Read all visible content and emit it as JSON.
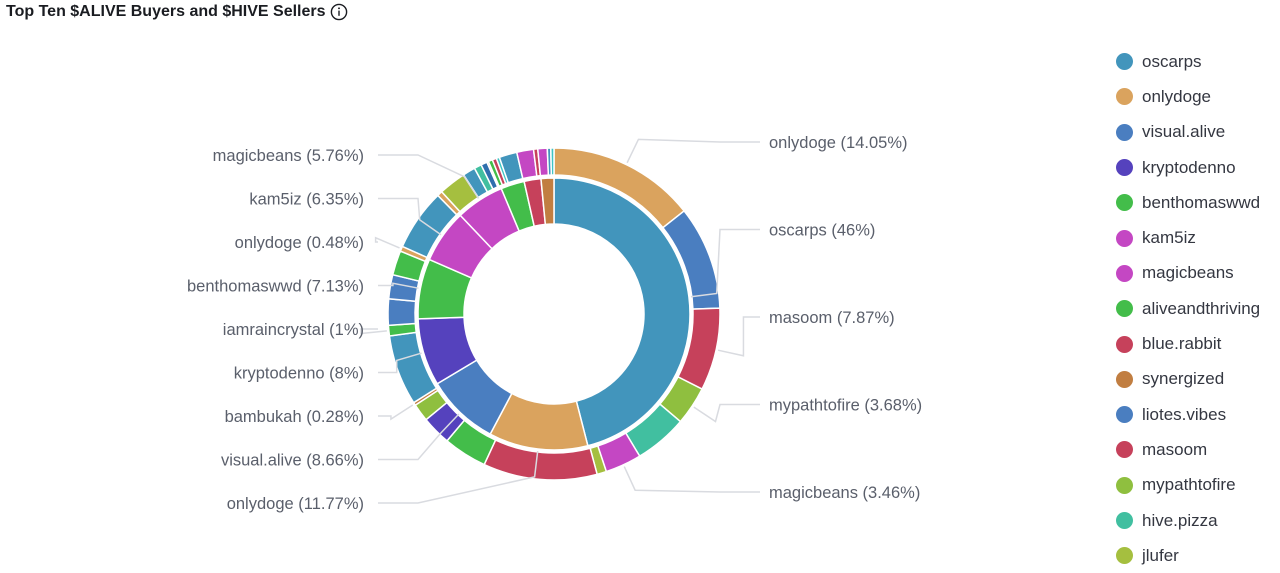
{
  "title": "Top Ten $ALIVE Buyers and $HIVE Sellers",
  "info_icon": "info-circle-icon",
  "colors": {
    "oscarps": "#4295bc",
    "onlydoge": "#daa35e",
    "visual.alive": "#4a7ec0",
    "kryptodenno": "#5542bd",
    "benthomaswwd": "#43bd4a",
    "kam5iz": "#c447c3",
    "magicbeans": "#c447c3",
    "aliveandthriving": "#43bd4a",
    "blue.rabbit": "#c6415b",
    "synergized": "#c17e41",
    "liotes.vibes": "#4a7ec0",
    "masoom": "#c6415b",
    "mypathtofire": "#8fbf3f",
    "hive.pizza": "#41bfa0",
    "jlufer": "#a5bf3f",
    "bambukah": "#c17e41",
    "iamraincrystal": "#43bd4a",
    "other_dark": "#2f6fad",
    "other_teal": "#3ec4c4"
  },
  "legend": [
    {
      "label": "oscarps",
      "color": "#4295bc"
    },
    {
      "label": "onlydoge",
      "color": "#daa35e"
    },
    {
      "label": "visual.alive",
      "color": "#4a7ec0"
    },
    {
      "label": "kryptodenno",
      "color": "#5542bd"
    },
    {
      "label": "benthomaswwd",
      "color": "#43bd4a"
    },
    {
      "label": "kam5iz",
      "color": "#c447c3"
    },
    {
      "label": "magicbeans",
      "color": "#c447c3"
    },
    {
      "label": "aliveandthriving",
      "color": "#43bd4a"
    },
    {
      "label": "blue.rabbit",
      "color": "#c6415b"
    },
    {
      "label": "synergized",
      "color": "#c17e41"
    },
    {
      "label": "liotes.vibes",
      "color": "#4a7ec0"
    },
    {
      "label": "masoom",
      "color": "#c6415b"
    },
    {
      "label": "mypathtofire",
      "color": "#8fbf3f"
    },
    {
      "label": "hive.pizza",
      "color": "#41bfa0"
    },
    {
      "label": "jlufer",
      "color": "#a5bf3f"
    }
  ],
  "chart_data": {
    "type": "pie",
    "donut": true,
    "legend_position": "right",
    "inner_ring": [
      {
        "name": "oscarps",
        "value": 46,
        "color": "#4295bc"
      },
      {
        "name": "onlydoge",
        "value": 11.77,
        "color": "#daa35e"
      },
      {
        "name": "visual.alive",
        "value": 8.66,
        "color": "#4a7ec0"
      },
      {
        "name": "kryptodenno",
        "value": 8,
        "color": "#5542bd"
      },
      {
        "name": "benthomaswwd",
        "value": 7.13,
        "color": "#43bd4a"
      },
      {
        "name": "kam5iz",
        "value": 6.35,
        "color": "#c447c3"
      },
      {
        "name": "magicbeans",
        "value": 5.76,
        "color": "#c447c3"
      },
      {
        "name": "aliveandthriving",
        "value": 2.8,
        "color": "#43bd4a"
      },
      {
        "name": "blue.rabbit",
        "value": 2.0,
        "color": "#c6415b"
      },
      {
        "name": "synergized",
        "value": 1.53,
        "color": "#c17e41"
      }
    ],
    "outer_ring": [
      {
        "parent": "oscarps",
        "name": "onlydoge",
        "value": 14.05,
        "color": "#daa35e"
      },
      {
        "parent": "oscarps",
        "name": "visual.alive",
        "value": 9.9,
        "color": "#4a7ec0"
      },
      {
        "parent": "oscarps",
        "name": "masoom",
        "value": 7.87,
        "color": "#c6415b"
      },
      {
        "parent": "oscarps",
        "name": "mypathtofire",
        "value": 3.68,
        "color": "#8fbf3f"
      },
      {
        "parent": "oscarps",
        "name": "hive.pizza",
        "value": 5.04,
        "color": "#41bfa0"
      },
      {
        "parent": "oscarps",
        "name": "magicbeans",
        "value": 3.46,
        "color": "#c447c3"
      },
      {
        "parent": "onlydoge",
        "name": "jlufer",
        "value": 0.9,
        "color": "#a5bf3f"
      },
      {
        "parent": "onlydoge",
        "name": "masoom",
        "value": 10.87,
        "color": "#c6415b"
      },
      {
        "parent": "visual.alive",
        "name": "benthomaswwd",
        "value": 4.16,
        "color": "#43bd4a"
      },
      {
        "parent": "visual.alive",
        "name": "kryptodenno",
        "value": 2.8,
        "color": "#5542bd"
      },
      {
        "parent": "visual.alive",
        "name": "mypathtofire",
        "value": 1.7,
        "color": "#8fbf3f"
      },
      {
        "parent": "kryptodenno",
        "name": "bambukah",
        "value": 0.28,
        "color": "#c17e41"
      },
      {
        "parent": "kryptodenno",
        "name": "visual.alive",
        "value": 6.72,
        "color": "#4295bc"
      },
      {
        "parent": "kryptodenno",
        "name": "iamraincrystal",
        "value": 1,
        "color": "#43bd4a"
      },
      {
        "parent": "benthomaswwd",
        "name": "visual.alive",
        "value": 2.5,
        "color": "#4a7ec0"
      },
      {
        "parent": "benthomaswwd",
        "name": "liotes.vibes",
        "value": 2.3,
        "color": "#4a7ec0"
      },
      {
        "parent": "benthomaswwd",
        "name": "aliveandthriving",
        "value": 2.33,
        "color": "#43bd4a"
      },
      {
        "parent": "kam5iz",
        "name": "onlydoge",
        "value": 0.48,
        "color": "#daa35e"
      },
      {
        "parent": "kam5iz",
        "name": "oscarps",
        "value": 5.87,
        "color": "#4295bc"
      },
      {
        "parent": "magicbeans",
        "name": "onlydoge",
        "value": 0.5,
        "color": "#daa35e"
      },
      {
        "parent": "magicbeans",
        "name": "jlufer",
        "value": 2.6,
        "color": "#a5bf3f"
      },
      {
        "parent": "magicbeans",
        "name": "oscarps",
        "value": 1.2,
        "color": "#4295bc"
      },
      {
        "parent": "magicbeans",
        "name": "hive.pizza",
        "value": 0.7,
        "color": "#41bfa0"
      },
      {
        "parent": "magicbeans",
        "name": "liotes.vibes",
        "value": 0.6,
        "color": "#2f6fad"
      },
      {
        "parent": "magicbeans",
        "name": "onlydoge",
        "value": 0.16,
        "color": "#daa35e"
      },
      {
        "parent": "aliveandthriving",
        "name": "kryptodenno",
        "value": 0.4,
        "color": "#43bd4a"
      },
      {
        "parent": "aliveandthriving",
        "name": "blue.rabbit",
        "value": 0.4,
        "color": "#c6415b"
      },
      {
        "parent": "aliveandthriving",
        "name": "hive.pizza",
        "value": 0.3,
        "color": "#3ec4c4"
      },
      {
        "parent": "aliveandthriving",
        "name": "visual.alive",
        "value": 1.7,
        "color": "#4295bc"
      },
      {
        "parent": "blue.rabbit",
        "name": "kam5iz",
        "value": 1.6,
        "color": "#c447c3"
      },
      {
        "parent": "blue.rabbit",
        "name": "masoom",
        "value": 0.4,
        "color": "#c6415b"
      },
      {
        "parent": "synergized",
        "name": "oscarps",
        "value": 0.9,
        "color": "#c447c3"
      },
      {
        "parent": "synergized",
        "name": "visual.alive",
        "value": 0.33,
        "color": "#4295bc"
      },
      {
        "parent": "synergized",
        "name": "hive.pizza",
        "value": 0.3,
        "color": "#3ec4c4"
      }
    ],
    "callouts": [
      {
        "text": "onlydoge (14.05%)",
        "side": "right",
        "ring": "outer",
        "slice": 0
      },
      {
        "text": "oscarps (46%)",
        "side": "right",
        "ring": "inner",
        "slice": 0
      },
      {
        "text": "masoom (7.87%)",
        "side": "right",
        "ring": "outer",
        "slice": 2
      },
      {
        "text": "mypathtofire (3.68%)",
        "side": "right",
        "ring": "outer",
        "slice": 3
      },
      {
        "text": "magicbeans (3.46%)",
        "side": "right",
        "ring": "outer",
        "slice": 5
      },
      {
        "text": "magicbeans (5.76%)",
        "side": "left",
        "ring": "inner",
        "slice": 6
      },
      {
        "text": "kam5iz (6.35%)",
        "side": "left",
        "ring": "inner",
        "slice": 5
      },
      {
        "text": "onlydoge (0.48%)",
        "side": "left",
        "ring": "outer",
        "slice": 17
      },
      {
        "text": "benthomaswwd (7.13%)",
        "side": "left",
        "ring": "inner",
        "slice": 4
      },
      {
        "text": "iamraincrystal (1%)",
        "side": "left",
        "ring": "outer",
        "slice": 13
      },
      {
        "text": "kryptodenno (8%)",
        "side": "left",
        "ring": "inner",
        "slice": 3
      },
      {
        "text": "bambukah (0.28%)",
        "side": "left",
        "ring": "outer",
        "slice": 11
      },
      {
        "text": "visual.alive (8.66%)",
        "side": "left",
        "ring": "inner",
        "slice": 2
      },
      {
        "text": "onlydoge (11.77%)",
        "side": "left",
        "ring": "inner",
        "slice": 1
      }
    ]
  }
}
